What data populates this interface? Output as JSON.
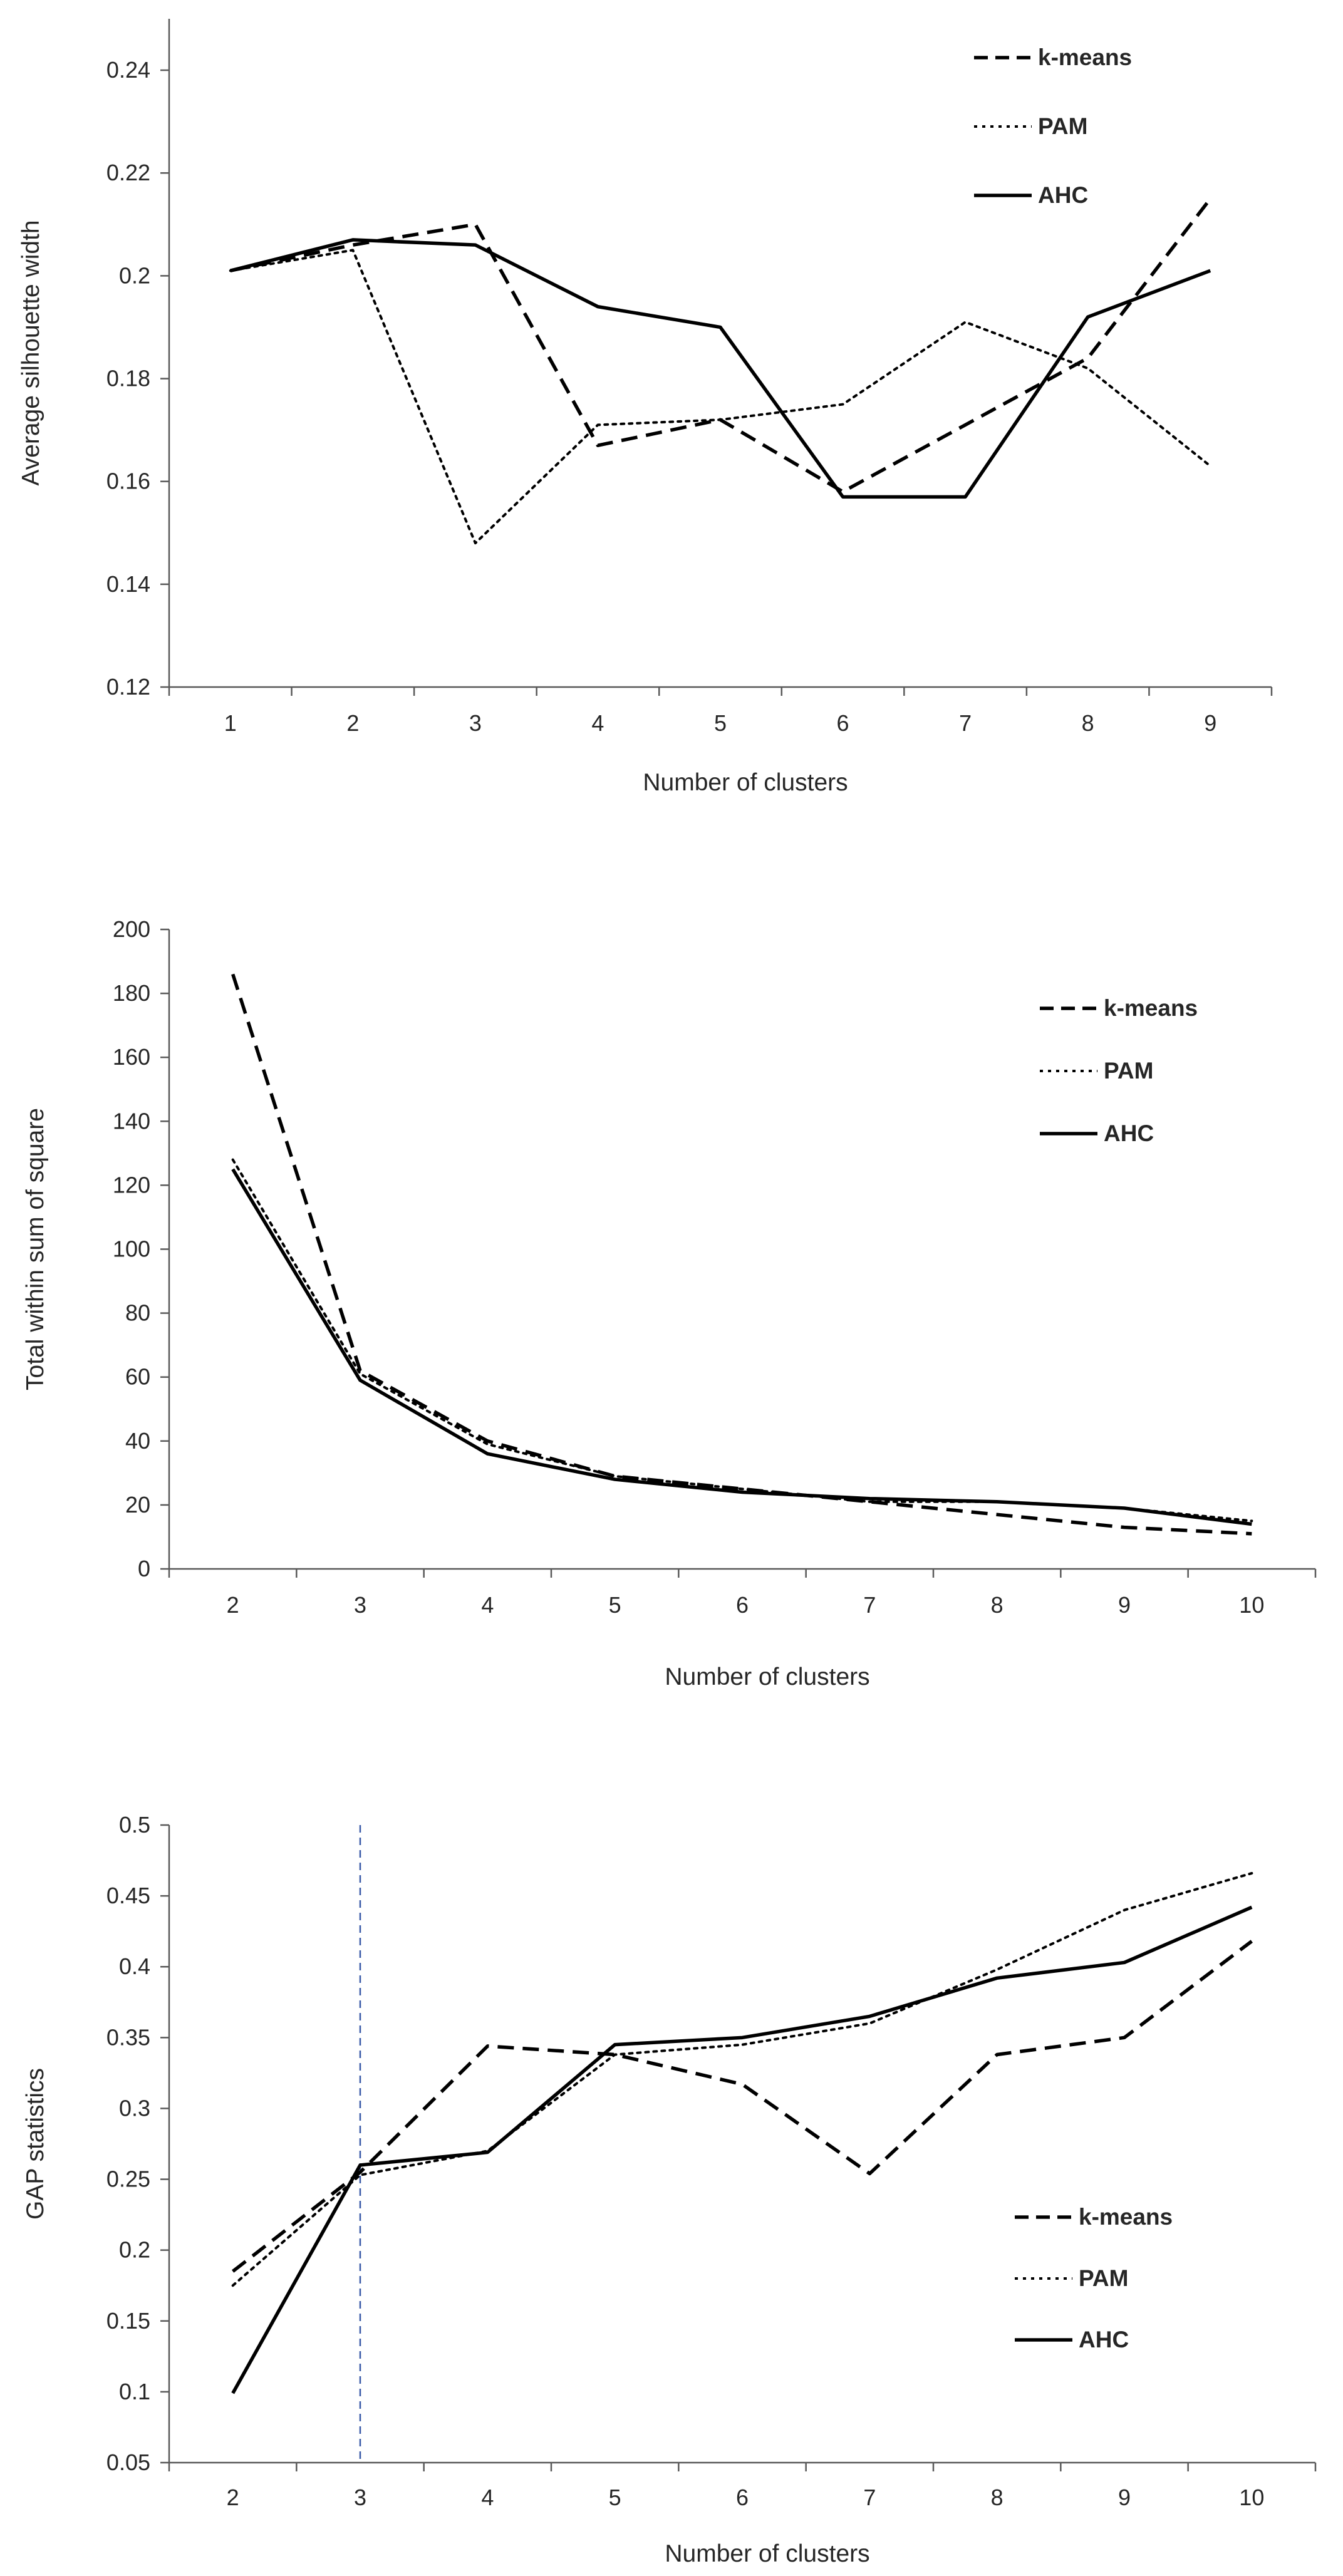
{
  "chart_data": [
    {
      "type": "line",
      "title": "",
      "xlabel": "Number of clusters",
      "ylabel": "Average silhouette width",
      "x": [
        1,
        2,
        3,
        4,
        5,
        6,
        7,
        8,
        9
      ],
      "ylim": [
        0.12,
        0.25
      ],
      "yticks": [
        "0.12",
        "0.14",
        "0.16",
        "0.18",
        "0.2",
        "0.22",
        "0.24"
      ],
      "grid": false,
      "legend_position": "top-right",
      "series": [
        {
          "name": "k-means",
          "style": "dashed",
          "values": [
            0.201,
            0.206,
            0.21,
            0.167,
            0.172,
            0.158,
            0.171,
            0.184,
            0.215
          ]
        },
        {
          "name": "PAM",
          "style": "dotted",
          "values": [
            0.201,
            0.205,
            0.148,
            0.171,
            0.172,
            0.175,
            0.191,
            0.182,
            0.163
          ]
        },
        {
          "name": "AHC",
          "style": "solid",
          "values": [
            0.201,
            0.207,
            0.206,
            0.194,
            0.19,
            0.157,
            0.157,
            0.192,
            0.201
          ]
        }
      ]
    },
    {
      "type": "line",
      "title": "",
      "xlabel": "Number of clusters",
      "ylabel": "Total within sum of square",
      "x": [
        2,
        3,
        4,
        5,
        6,
        7,
        8,
        9,
        10
      ],
      "ylim": [
        0,
        200
      ],
      "yticks": [
        "0",
        "20",
        "40",
        "60",
        "80",
        "100",
        "120",
        "140",
        "160",
        "180",
        "200"
      ],
      "grid": false,
      "legend_position": "top-right",
      "series": [
        {
          "name": "k-means",
          "style": "dashed",
          "values": [
            186,
            62,
            40,
            29,
            25,
            21,
            17,
            13,
            11
          ]
        },
        {
          "name": "PAM",
          "style": "dotted",
          "values": [
            128,
            61,
            39,
            29,
            25,
            21,
            21,
            19,
            15
          ]
        },
        {
          "name": "AHC",
          "style": "solid",
          "values": [
            125,
            59,
            36,
            28,
            24,
            22,
            21,
            19,
            14
          ]
        }
      ]
    },
    {
      "type": "line",
      "title": "",
      "xlabel": "Number of clusters",
      "ylabel": "GAP statistics",
      "x": [
        2,
        3,
        4,
        5,
        6,
        7,
        8,
        9,
        10
      ],
      "ylim": [
        0.05,
        0.5
      ],
      "yticks": [
        "0.05",
        "0.1",
        "0.15",
        "0.2",
        "0.25",
        "0.3",
        "0.35",
        "0.4",
        "0.45",
        "0.5"
      ],
      "grid": false,
      "legend_position": "bottom-right",
      "reference_line": {
        "x": 3,
        "style": "dashed",
        "color": "#3a5aa8"
      },
      "series": [
        {
          "name": "k-means",
          "style": "dashed",
          "values": [
            0.185,
            0.255,
            0.344,
            0.338,
            0.317,
            0.254,
            0.338,
            0.35,
            0.418
          ]
        },
        {
          "name": "PAM",
          "style": "dotted",
          "values": [
            0.175,
            0.253,
            0.27,
            0.338,
            0.345,
            0.36,
            0.398,
            0.44,
            0.466
          ]
        },
        {
          "name": "AHC",
          "style": "solid",
          "values": [
            0.099,
            0.26,
            0.269,
            0.345,
            0.35,
            0.365,
            0.392,
            0.403,
            0.442
          ]
        }
      ]
    }
  ],
  "colors": {
    "line": "#000000",
    "axis": "#595959",
    "text": "#262626",
    "reference_line": "#3a5aa8"
  }
}
